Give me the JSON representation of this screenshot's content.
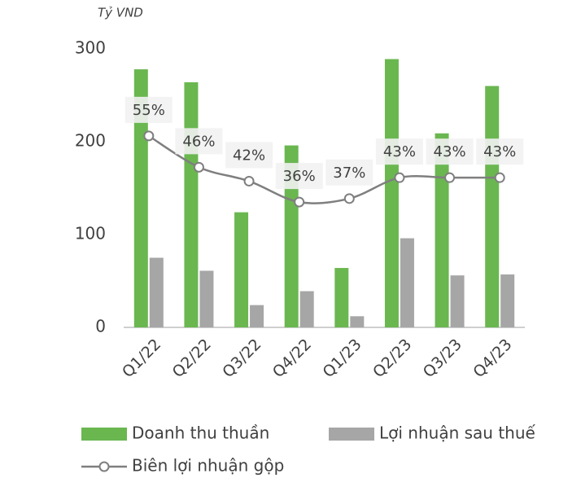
{
  "chart_data": {
    "type": "bar-line",
    "unit_label": "Tỷ VND",
    "categories": [
      "Q1/22",
      "Q2/22",
      "Q3/22",
      "Q4/22",
      "Q1/23",
      "Q2/23",
      "Q3/23",
      "Q4/23"
    ],
    "series": [
      {
        "name": "Doanh thu thuần",
        "type": "bar",
        "color": "#6ab750",
        "values": [
          278,
          264,
          124,
          196,
          64,
          289,
          209,
          260
        ]
      },
      {
        "name": "Lợi nhuận sau thuế",
        "type": "bar",
        "color": "#a6a6a6",
        "values": [
          75,
          61,
          24,
          39,
          12,
          96,
          56,
          57
        ]
      },
      {
        "name": "Biên lợi nhuận gộp",
        "type": "line",
        "axis": "y2",
        "color": "#7f7f7f",
        "values": [
          55,
          46,
          42,
          36,
          37,
          43,
          43,
          43
        ],
        "value_labels": [
          "55%",
          "46%",
          "42%",
          "36%",
          "37%",
          "43%",
          "43%",
          "43%"
        ]
      }
    ],
    "ylim": [
      0,
      300
    ],
    "yticks": [
      0,
      100,
      200,
      300
    ],
    "y2lim": [
      0,
      80
    ],
    "grid": false
  }
}
